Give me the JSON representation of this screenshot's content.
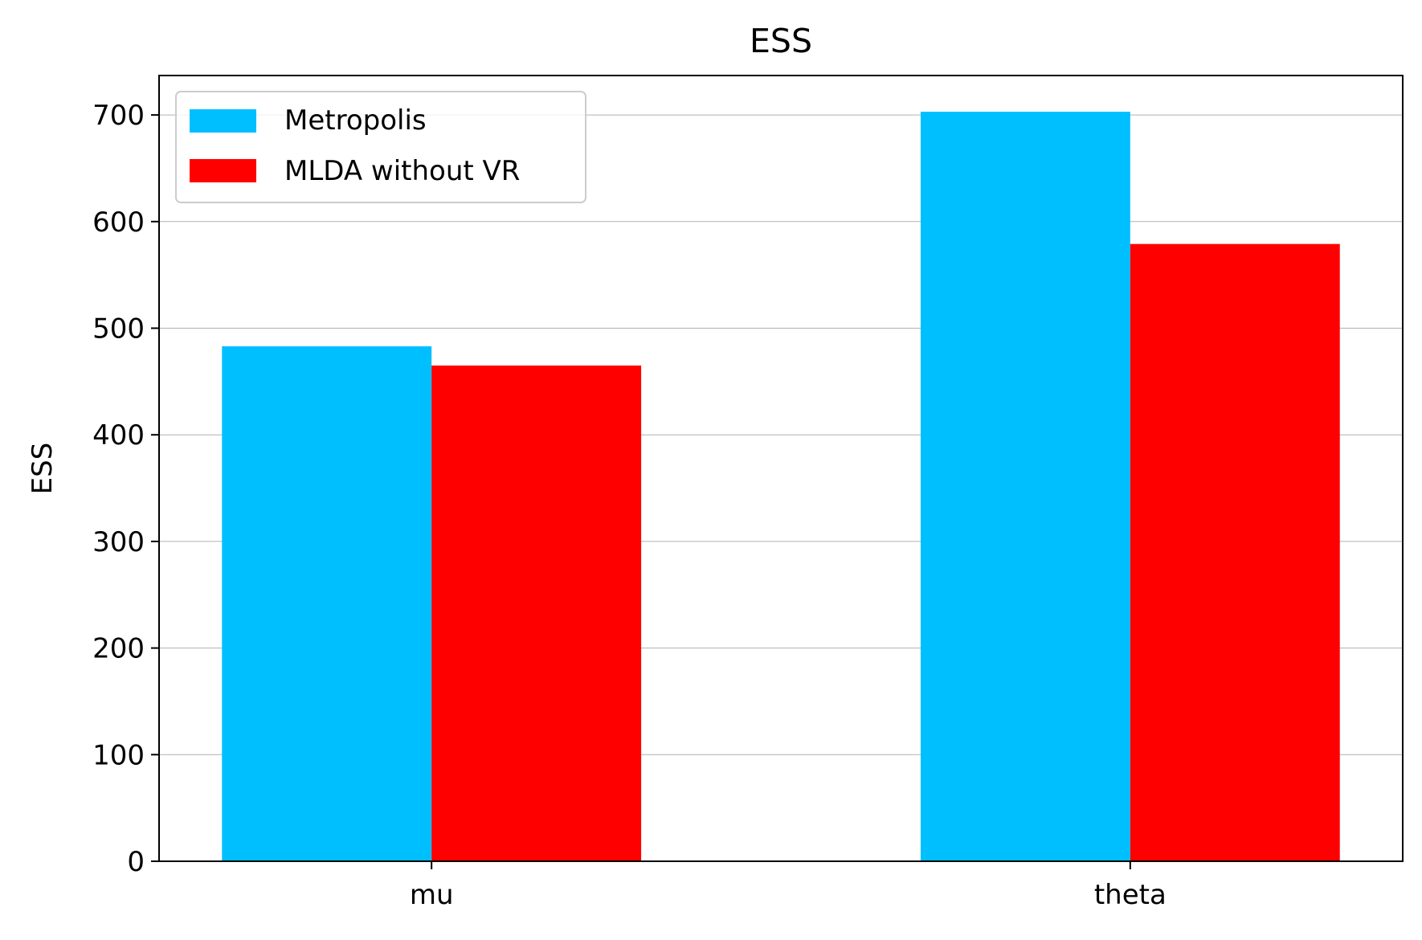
{
  "chart_data": {
    "type": "bar",
    "title": "ESS",
    "xlabel": "",
    "ylabel": "ESS",
    "categories": [
      "mu",
      "theta"
    ],
    "series": [
      {
        "name": "Metropolis",
        "values": [
          483,
          703
        ],
        "color": "#00BFFF"
      },
      {
        "name": "MLDA without VR",
        "values": [
          465,
          579
        ],
        "color": "#FF0000"
      }
    ],
    "ylim": [
      0,
      737
    ],
    "yticks": [
      0,
      100,
      200,
      300,
      400,
      500,
      600,
      700
    ],
    "grid": "horizontal",
    "legend_position": "top-left"
  }
}
